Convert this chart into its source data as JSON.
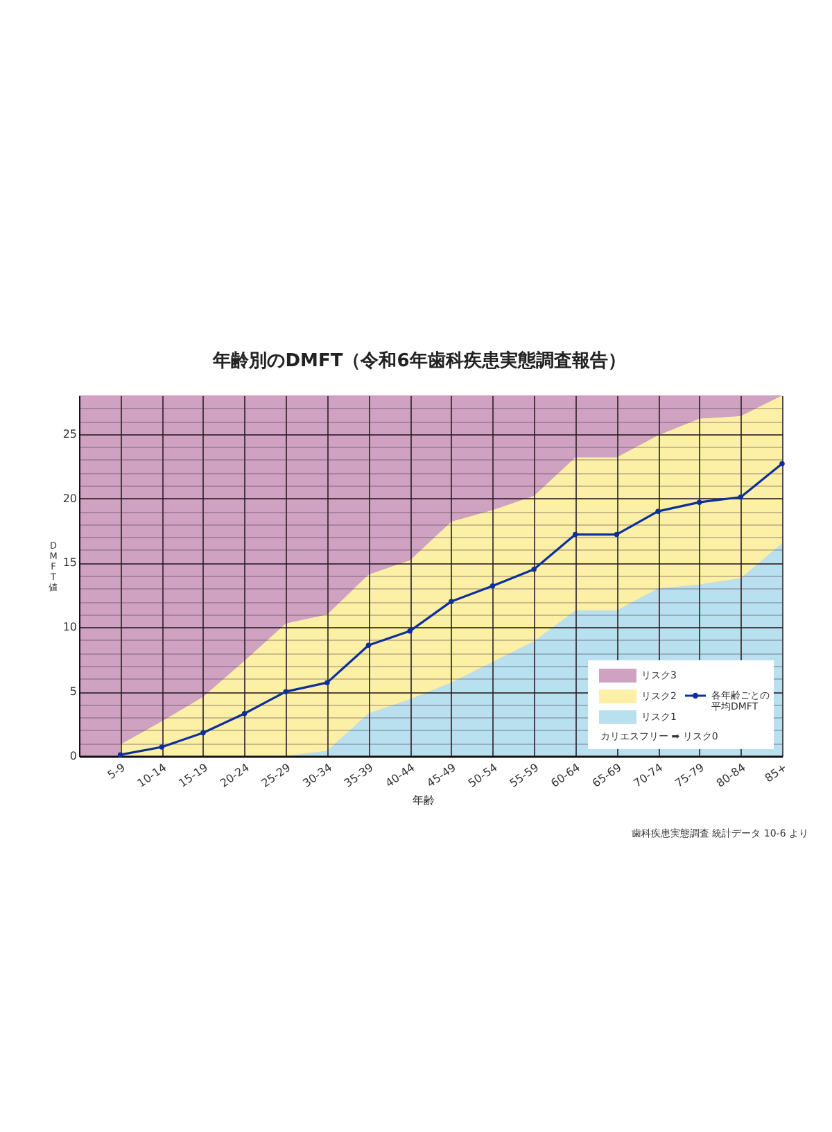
{
  "chart_data": {
    "type": "area",
    "title": "年齢別のDMFT（令和6年歯科疾患実態調査報告）",
    "xlabel": "年齢",
    "ylabel": "DMFT値",
    "categories": [
      null,
      "5-9",
      "10-14",
      "15-19",
      "20-24",
      "25-29",
      "30-34",
      "35-39",
      "40-44",
      "45-49",
      "50-54",
      "55-59",
      "60-64",
      "65-69",
      "70-74",
      "75-79",
      "80-84",
      "85+"
    ],
    "series": [
      {
        "name": "リスク1",
        "color": "#b8e0ef",
        "values": [
          null,
          0,
          0,
          0,
          0,
          0,
          0.4,
          3.3,
          4.4,
          5.7,
          7.3,
          8.9,
          11.3,
          11.3,
          13.0,
          13.3,
          13.8,
          16.5
        ]
      },
      {
        "name": "リスク2",
        "color": "#fcf0a6",
        "values": [
          null,
          0.9,
          2.7,
          4.6,
          7.4,
          10.3,
          10.6,
          10.8,
          10.8,
          12.5,
          11.8,
          11.3,
          11.9,
          11.9,
          11.9,
          12.9,
          12.6,
          11.5
        ]
      },
      {
        "name": "リスク3",
        "color": "#cfa2c2",
        "values": [
          null,
          27.1,
          25.3,
          23.4,
          20.6,
          17.7,
          17.0,
          13.9,
          12.8,
          9.8,
          8.9,
          7.8,
          4.8,
          4.8,
          3.1,
          1.8,
          1.6,
          0
        ]
      },
      {
        "name": "各年齢ごとの平均DMFT",
        "type": "line",
        "marker": "circle",
        "color": "#0d2f9c",
        "values": [
          null,
          0.1,
          0.7,
          1.8,
          3.3,
          5.0,
          5.7,
          8.6,
          9.7,
          12.0,
          13.2,
          14.5,
          17.2,
          17.2,
          19.0,
          19.7,
          20.1,
          22.7
        ]
      }
    ],
    "stacked": true,
    "ylim": [
      0,
      28
    ],
    "yticks": [
      0,
      {
        "value": 1,
        "label": null
      },
      {
        "value": 2,
        "label": null
      },
      {
        "value": 3,
        "label": null
      },
      {
        "value": 4,
        "label": null
      },
      5,
      {
        "value": 6,
        "label": null
      },
      {
        "value": 7,
        "label": null
      },
      {
        "value": 8,
        "label": null
      },
      {
        "value": 9,
        "label": null
      },
      10,
      {
        "value": 11,
        "label": null
      },
      {
        "value": 12,
        "label": null
      },
      {
        "value": 13,
        "label": null
      },
      {
        "value": 14,
        "label": null
      },
      15,
      {
        "value": 16,
        "label": null
      },
      {
        "value": 17,
        "label": null
      },
      {
        "value": 18,
        "label": null
      },
      {
        "value": 19,
        "label": null
      },
      20,
      {
        "value": 21,
        "label": null
      },
      {
        "value": 22,
        "label": null
      },
      {
        "value": 23,
        "label": null
      },
      {
        "value": 24,
        "label": null
      },
      25,
      {
        "value": 26,
        "label": null
      },
      {
        "value": 27,
        "label": null
      }
    ],
    "grid": true,
    "legend": "bottom right",
    "annotations": [
      "カリエスフリー ➡ リスク0",
      "歯科疾患実態調査 統計データ 10-6 より"
    ]
  }
}
